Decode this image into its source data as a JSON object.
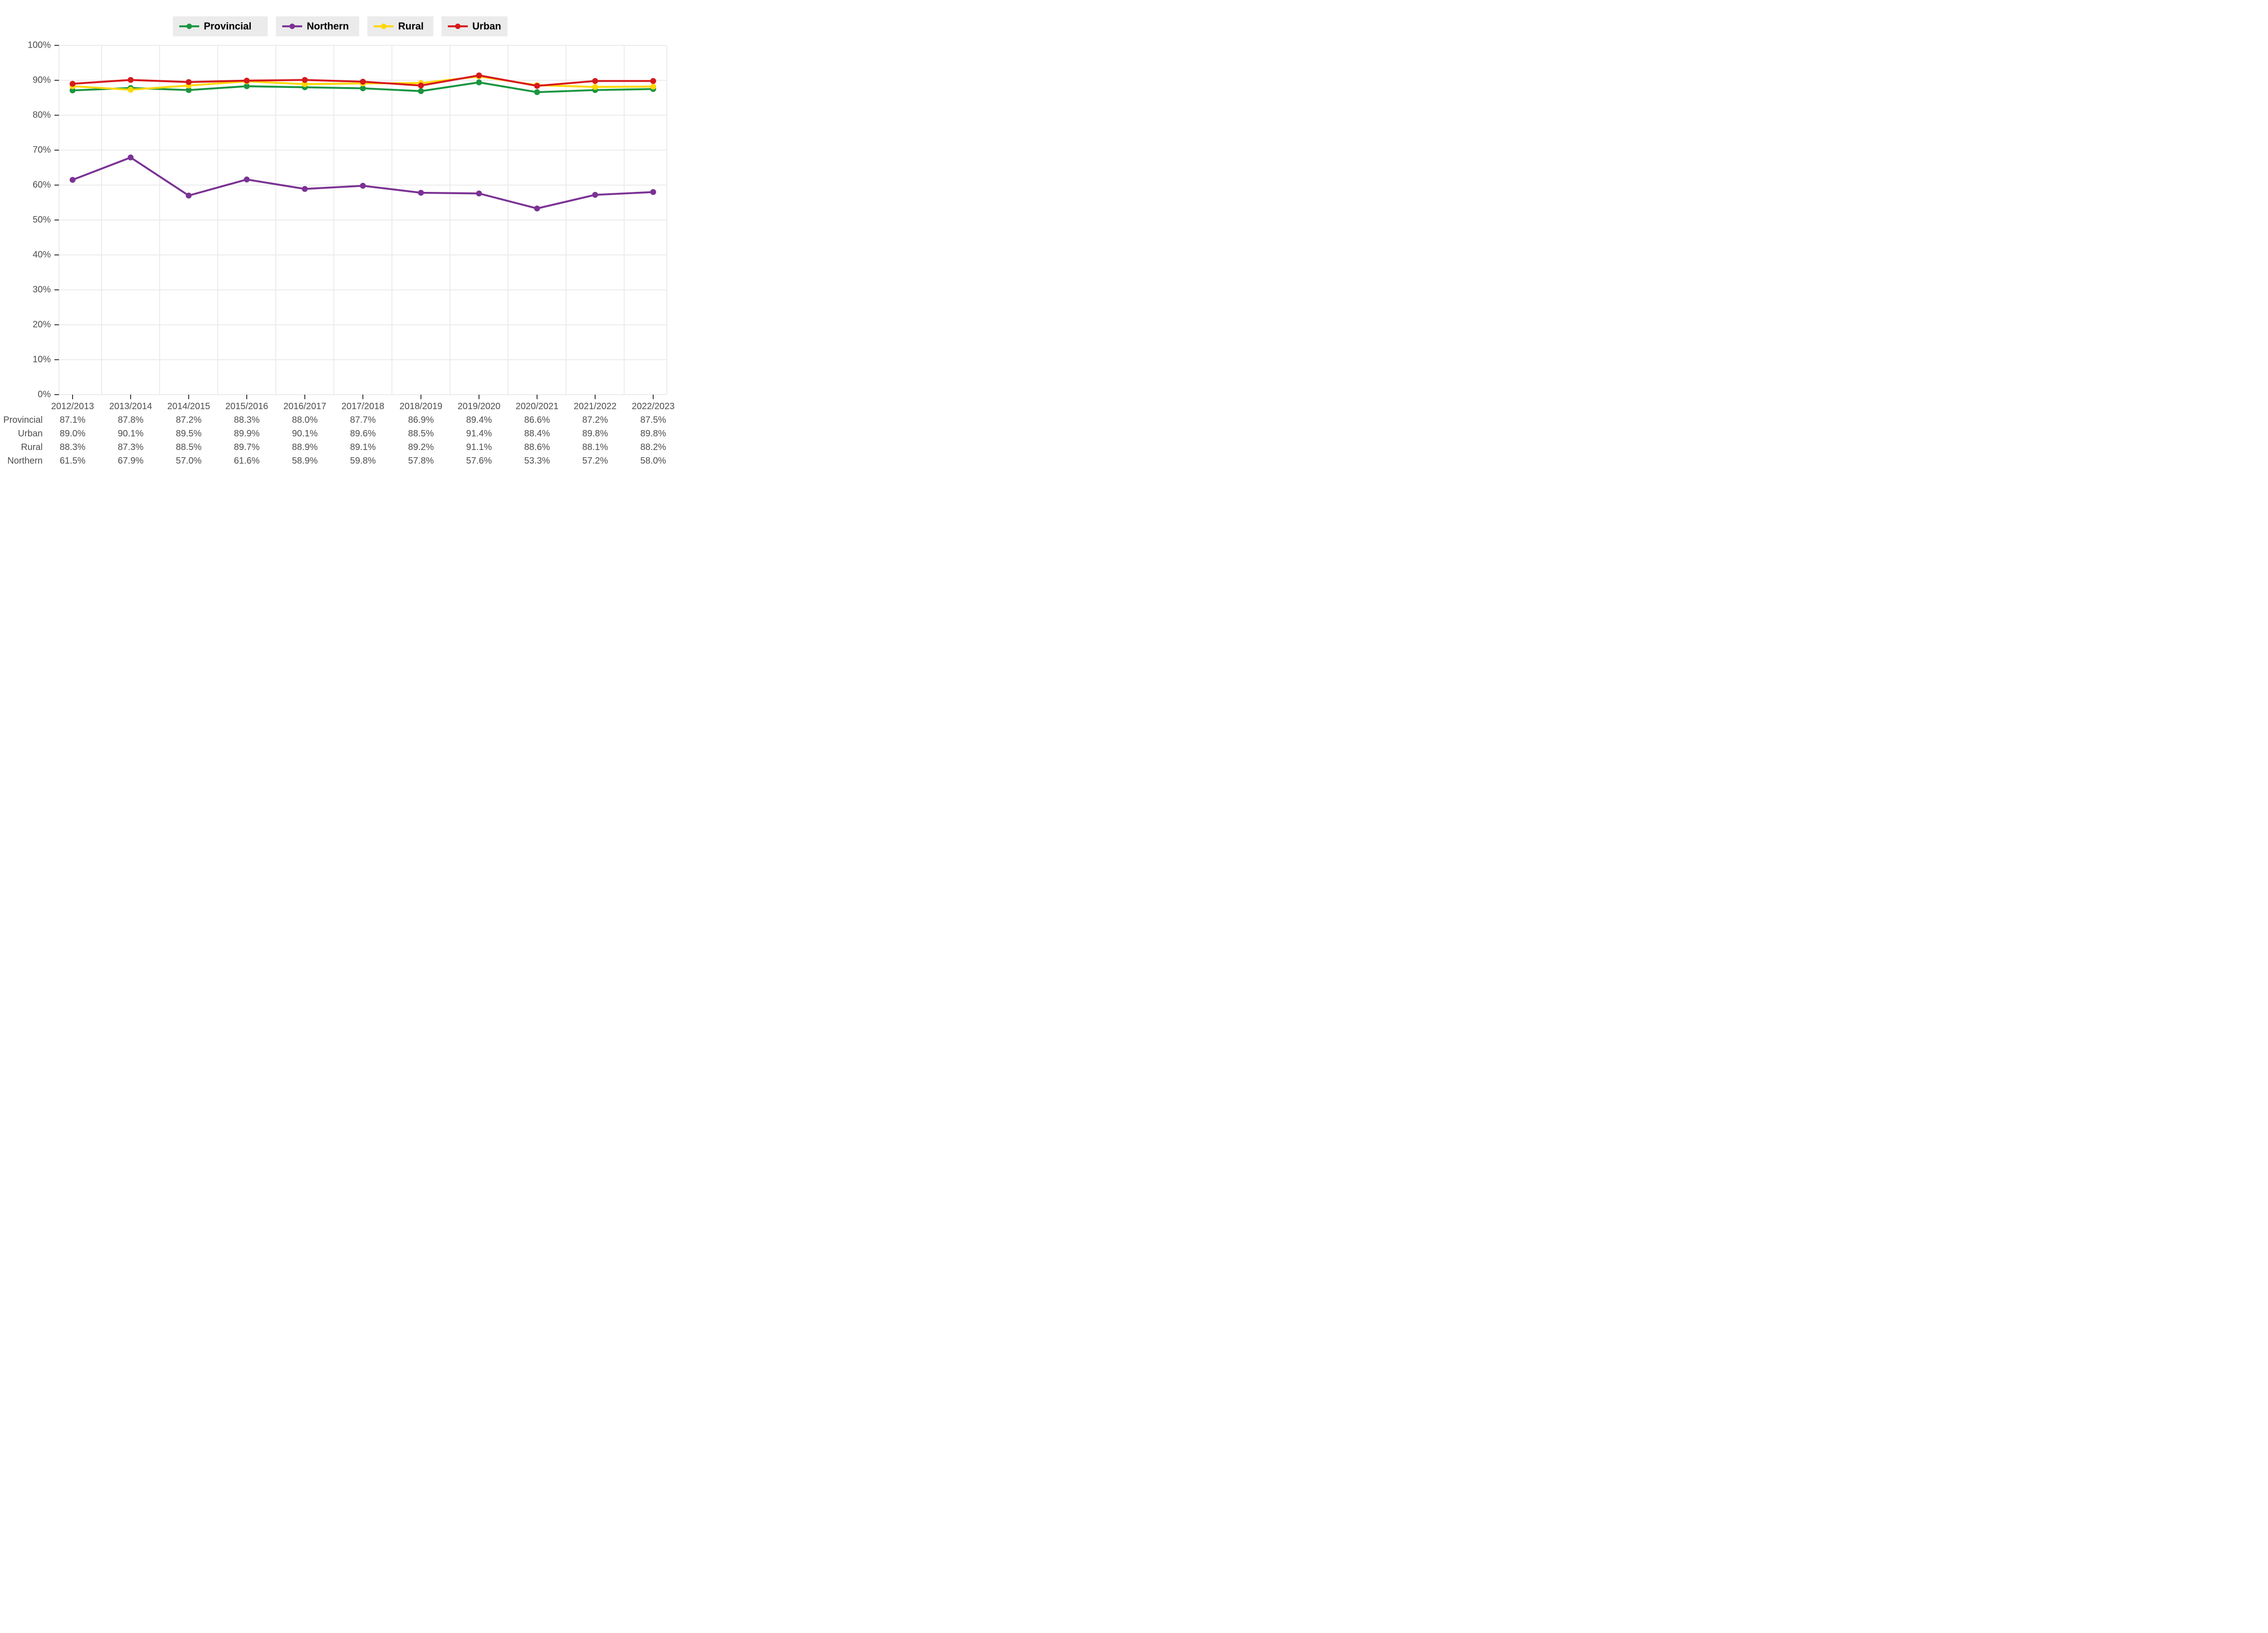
{
  "chart": {
    "type": "line",
    "background_color": "#ffffff",
    "grid_color": "#ebebeb",
    "axis_text_color": "#4d4d4d",
    "tick_color": "#333333",
    "line_width": 4.2,
    "marker_radius": 6,
    "tick_fontsize": 20,
    "table_fontsize": 20,
    "legend_fontsize": 22,
    "legend_fontweight": "700",
    "x_categories": [
      "2012/2013",
      "2013/2014",
      "2014/2015",
      "2015/2016",
      "2016/2017",
      "2017/2018",
      "2018/2019",
      "2019/2020",
      "2020/2021",
      "2021/2022",
      "2022/2023"
    ],
    "ylim": [
      0,
      100
    ],
    "ytick_step": 10,
    "y_tick_labels": [
      "0%",
      "10%",
      "20%",
      "30%",
      "40%",
      "50%",
      "60%",
      "70%",
      "80%",
      "90%",
      "100%"
    ],
    "series": [
      {
        "name": "Provincial",
        "color": "#1a9641",
        "values": [
          87.1,
          87.8,
          87.2,
          88.3,
          88.0,
          87.7,
          86.9,
          89.4,
          86.6,
          87.2,
          87.5
        ]
      },
      {
        "name": "Northern",
        "color": "#7b3294",
        "values": [
          61.5,
          67.9,
          57.0,
          61.6,
          58.9,
          59.8,
          57.8,
          57.6,
          53.3,
          57.2,
          58.0
        ]
      },
      {
        "name": "Rural",
        "color": "#ffd700",
        "values": [
          88.3,
          87.3,
          88.5,
          89.7,
          88.9,
          89.1,
          89.2,
          91.1,
          88.6,
          88.1,
          88.2
        ]
      },
      {
        "name": "Urban",
        "color": "#d7191c",
        "values": [
          89.0,
          90.1,
          89.5,
          89.9,
          90.1,
          89.6,
          88.5,
          91.4,
          88.4,
          89.8,
          89.8
        ]
      }
    ],
    "table_row_order": [
      "Provincial",
      "Urban",
      "Rural",
      "Northern"
    ]
  }
}
